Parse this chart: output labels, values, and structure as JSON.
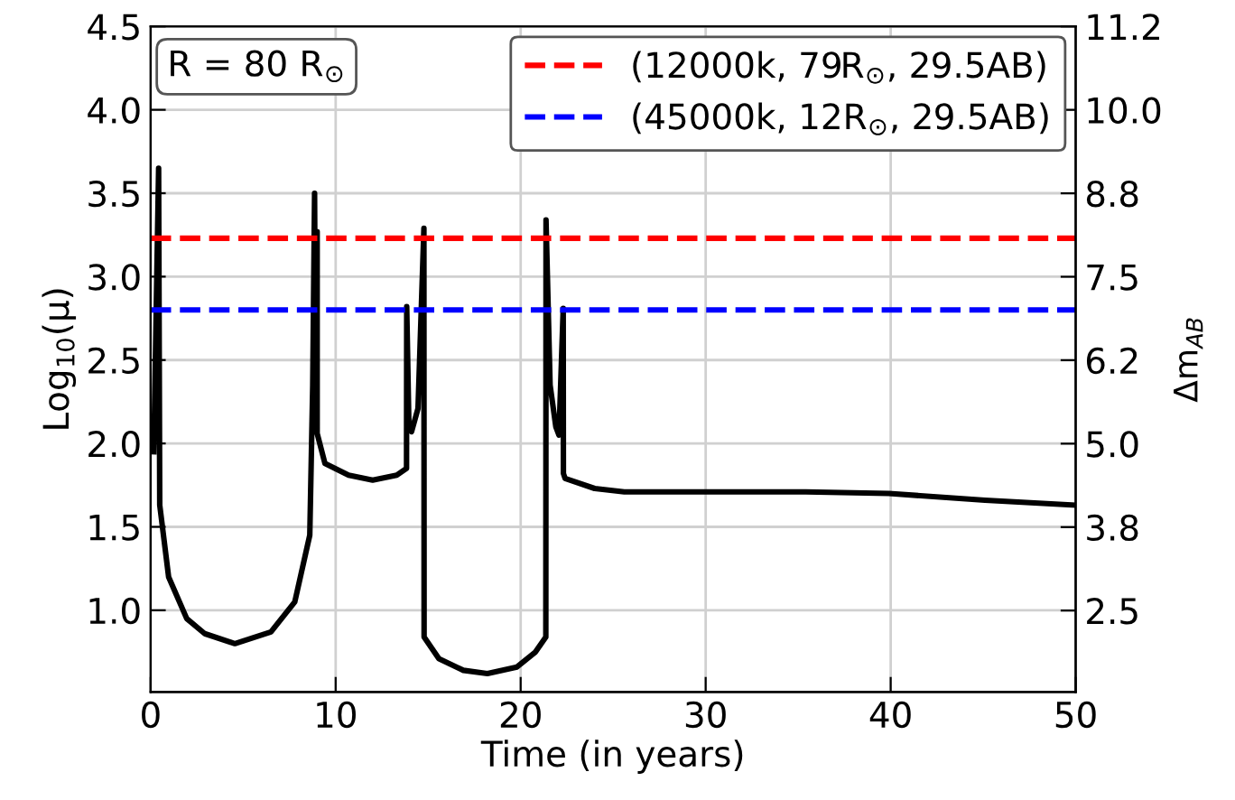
{
  "chart_data": {
    "type": "line",
    "xlabel": "Time (in years)",
    "ylabel": "Log$_{10}$(μ)",
    "y2label": "Δm$_{AB}$",
    "annotations": [
      "R = 80 R$_{⊙}$"
    ],
    "x": [
      0.17,
      0.43,
      0.49,
      0.97,
      1.95,
      2.92,
      4.55,
      6.5,
      7.79,
      8.6,
      8.76,
      8.86,
      8.87,
      9.0,
      9.0,
      9.42,
      10.7,
      12.0,
      13.3,
      13.83,
      13.84,
      13.96,
      14.1,
      14.45,
      14.77,
      14.78,
      15.58,
      16.9,
      18.2,
      19.8,
      20.8,
      21.36,
      21.37,
      21.59,
      21.9,
      22.07,
      22.3,
      22.31,
      22.4,
      24.0,
      25.6,
      29.9,
      35.4,
      39.9,
      45.1,
      50
    ],
    "series": [
      {
        "color": "#000000",
        "values": [
          1.95,
          3.65,
          1.63,
          1.2,
          0.95,
          0.86,
          0.8,
          0.87,
          1.05,
          1.45,
          2.35,
          3.5,
          3.27,
          3.27,
          2.06,
          1.88,
          1.81,
          1.78,
          1.81,
          1.85,
          2.82,
          2.1,
          2.07,
          2.21,
          3.29,
          0.84,
          0.71,
          0.64,
          0.62,
          0.66,
          0.75,
          0.84,
          3.34,
          2.35,
          2.1,
          2.05,
          2.81,
          1.82,
          1.79,
          1.73,
          1.71,
          1.71,
          1.71,
          1.7,
          1.66,
          1.63
        ]
      }
    ],
    "xlim": [
      0,
      50
    ],
    "xticks": [
      0,
      10,
      20,
      30,
      40,
      50
    ],
    "ylim": [
      0.51,
      4.5
    ],
    "yticks": [
      {
        "value": 1,
        "label": "1.0"
      },
      1.5,
      {
        "value": 2,
        "label": "2.0"
      },
      2.5,
      {
        "value": 3,
        "label": "3.0"
      },
      3.5,
      {
        "value": 4,
        "label": "4.0"
      },
      4.5
    ],
    "y2lim": [
      1.28,
      11.25
    ],
    "y2ticks": [
      2.5,
      {
        "value": 3.75,
        "label": "3.8"
      },
      {
        "value": 5,
        "label": "5.0"
      },
      {
        "value": 6.25,
        "label": "6.2"
      },
      7.5,
      {
        "value": 8.75,
        "label": "8.8"
      },
      {
        "value": 10,
        "label": "10.0"
      },
      {
        "value": 11.25,
        "label": "11.2"
      }
    ],
    "ref_lines": [
      {
        "axis": "y",
        "value": 3.23,
        "label": "(12000k, 79R$_{⊙}$, 29.5AB)",
        "color": "#ff0000",
        "line_style": "dashed"
      },
      {
        "axis": "y",
        "value": 2.8,
        "label": "(45000k, 12R$_{⊙}$, 29.5AB)",
        "color": "#0000ff",
        "line_style": "dashed"
      }
    ],
    "grid": true,
    "legend": "top right",
    "line_style": "solid",
    "marker": "none"
  }
}
